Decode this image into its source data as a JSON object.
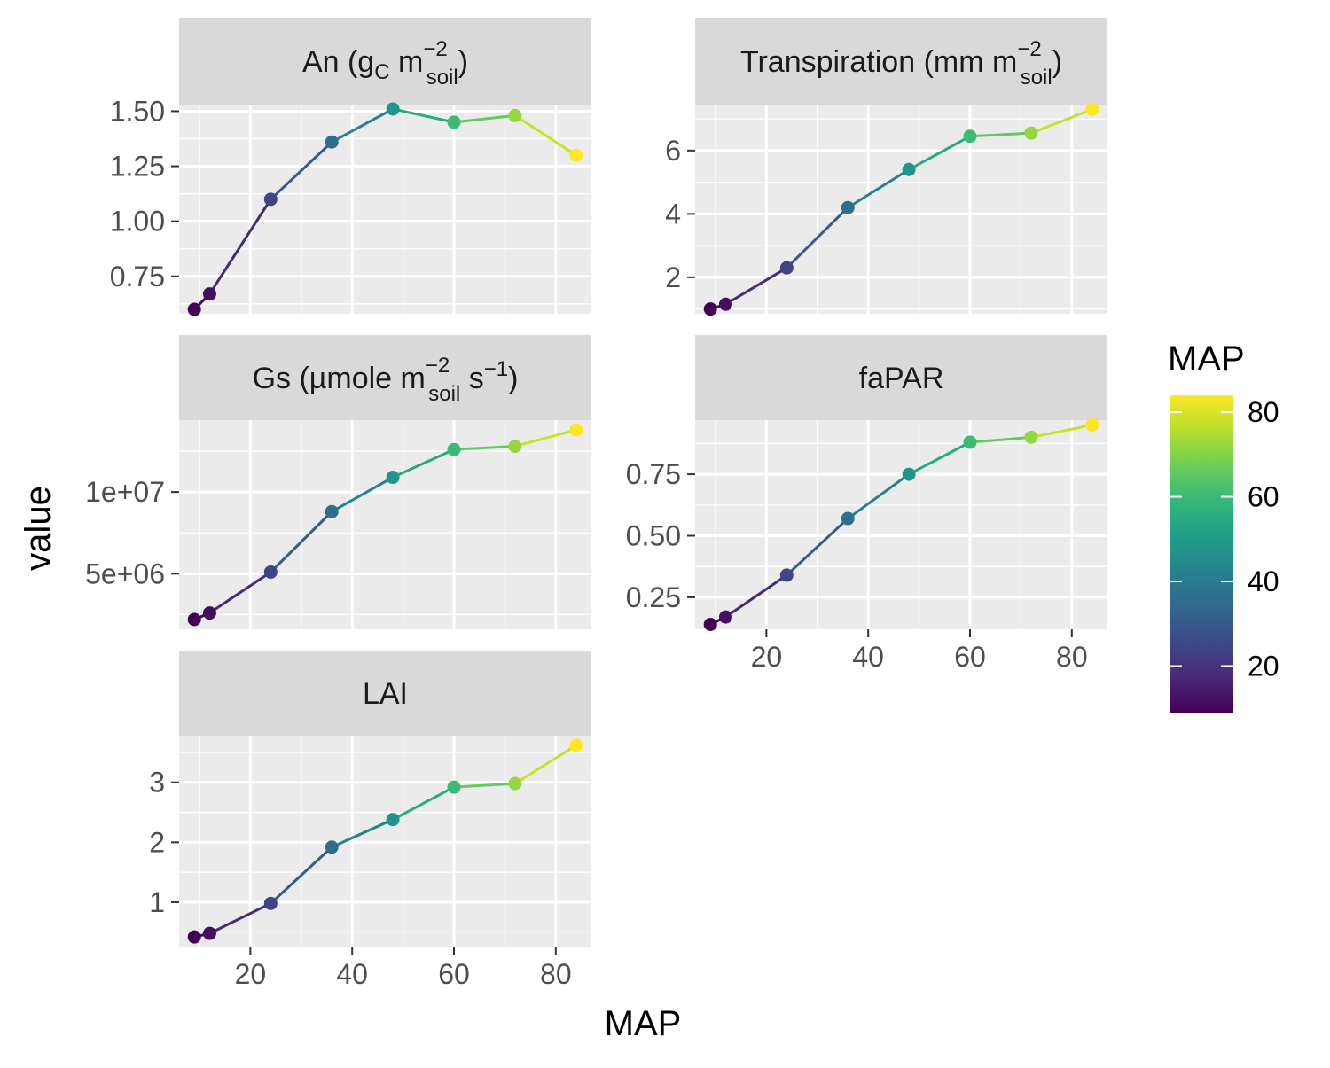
{
  "chart_data": {
    "type": "line",
    "layout": "facet-wrap",
    "x_label": "MAP",
    "y_label": "value",
    "x_ticks": [
      20,
      40,
      60,
      80
    ],
    "x_range": [
      6,
      87
    ],
    "grid": true,
    "legend": {
      "title": "MAP",
      "type": "colorbar",
      "placement": "right",
      "range": [
        9,
        84
      ],
      "ticks": [
        20,
        40,
        60,
        80
      ],
      "palette": [
        "#440154",
        "#482878",
        "#3E4A89",
        "#31688E",
        "#26828E",
        "#1F9E89",
        "#35B779",
        "#6DCD59",
        "#B4DE2C",
        "#FDE725"
      ]
    },
    "x": [
      9,
      12,
      24,
      36,
      48,
      60,
      72,
      84
    ],
    "panels": [
      {
        "key": "an",
        "strip": {
          "base": "An (g",
          "sub1": "C",
          "mid": " m",
          "sup": "−2",
          "sub2": "soil",
          "end": ")"
        },
        "values": [
          0.6,
          0.67,
          1.1,
          1.36,
          1.51,
          1.45,
          1.48,
          1.3
        ],
        "y_range": [
          0.58,
          1.53
        ],
        "y_ticks": [
          0.75,
          1.0,
          1.25,
          1.5
        ],
        "y_tick_labels": [
          "0.75",
          "1.00",
          "1.25",
          "1.50"
        ]
      },
      {
        "key": "transpiration",
        "strip": {
          "base": "Transpiration (mm m",
          "sup": "−2",
          "sub2": "soil",
          "end": ")"
        },
        "values": [
          1.0,
          1.15,
          2.3,
          4.2,
          5.4,
          6.45,
          6.55,
          7.3
        ],
        "y_range": [
          0.85,
          7.45
        ],
        "y_ticks": [
          2,
          4,
          6
        ],
        "y_tick_labels": [
          "2",
          "4",
          "6"
        ]
      },
      {
        "key": "gs",
        "strip": {
          "base": "Gs (µmole m",
          "sup": "−2",
          "sub2": "soil",
          "mid2": " s",
          "sup2": "−1",
          "end": ")"
        },
        "values": [
          2200000,
          2600000,
          5100000,
          8800000,
          10900000,
          12600000,
          12800000,
          13800000
        ],
        "y_range": [
          1600000,
          14400000
        ],
        "y_ticks": [
          5000000,
          10000000
        ],
        "y_tick_labels": [
          "5e+06",
          "1e+07"
        ]
      },
      {
        "key": "fapar",
        "strip": {
          "base": "faPAR"
        },
        "values": [
          0.14,
          0.17,
          0.34,
          0.57,
          0.75,
          0.88,
          0.9,
          0.95
        ],
        "y_range": [
          0.12,
          0.97
        ],
        "y_ticks": [
          0.25,
          0.5,
          0.75
        ],
        "y_tick_labels": [
          "0.25",
          "0.50",
          "0.75"
        ]
      },
      {
        "key": "lai",
        "strip": {
          "base": "LAI"
        },
        "values": [
          0.42,
          0.48,
          0.98,
          1.92,
          2.38,
          2.92,
          2.98,
          3.62
        ],
        "y_range": [
          0.26,
          3.78
        ],
        "y_ticks": [
          1,
          2,
          3
        ],
        "y_tick_labels": [
          "1",
          "2",
          "3"
        ]
      }
    ]
  }
}
